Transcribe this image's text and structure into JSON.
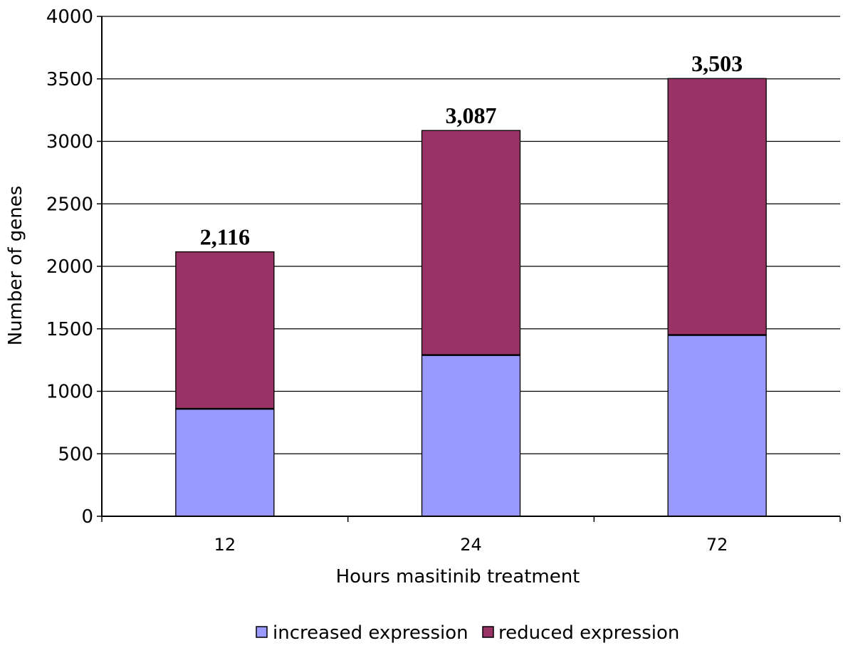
{
  "chart_data": {
    "type": "bar",
    "stacked": true,
    "categories": [
      "12",
      "24",
      "72"
    ],
    "series": [
      {
        "name": "increased expression",
        "values": [
          860,
          1290,
          1450
        ],
        "color": "#9999ff"
      },
      {
        "name": "reduced expression",
        "values": [
          1256,
          1797,
          2053
        ],
        "color": "#993366"
      }
    ],
    "totals": [
      2116,
      3087,
      3503
    ],
    "total_labels": [
      "2,116",
      "3,087",
      "3,503"
    ],
    "xlabel": "Hours masitinib treatment",
    "ylabel": "Number of genes",
    "ylim": [
      0,
      4000
    ],
    "yticks": [
      "0",
      "500",
      "1000",
      "1500",
      "2000",
      "2500",
      "3000",
      "3500",
      "4000"
    ],
    "grid": true,
    "legend_position": "bottom"
  }
}
